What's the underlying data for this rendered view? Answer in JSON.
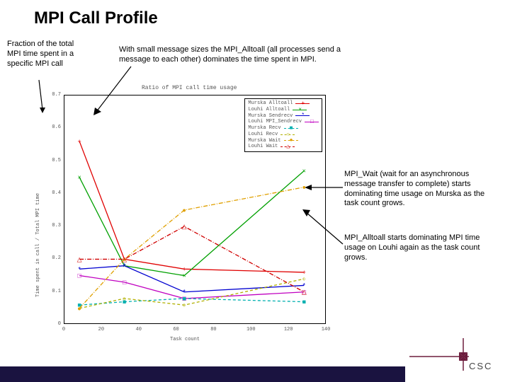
{
  "slide": {
    "title": "MPI Call Profile",
    "annotations": {
      "yaxis": "Fraction of the total MPI time spent in a specific MPI call",
      "top": "With small message sizes the MPI_Alltoall (all processes send a message to each other) dominates the time spent in MPI.",
      "right1": "MPI_Wait (wait for an asynchronous message transfer to complete) starts dominating time usage on Murska as the task count grows.",
      "right2": "MPI_Alltoall starts dominating MPI time usage on Louhi again as the task count grows."
    }
  },
  "chart": {
    "type": "line",
    "title": "Ratio of MPI call time usage",
    "title_fontsize": 8,
    "xlabel": "Task count",
    "ylabel": "Time spent in call / Total MPI time",
    "label_fontsize": 7,
    "xlim": [
      0,
      140
    ],
    "ylim": [
      0,
      0.7
    ],
    "xticks": [
      0,
      20,
      40,
      60,
      80,
      100,
      120,
      140
    ],
    "yticks": [
      0,
      0.1,
      0.2,
      0.3,
      0.4,
      0.5,
      0.6,
      0.7
    ],
    "grid": false,
    "background_color": "#ffffff",
    "border_color": "#000000",
    "series": [
      {
        "id": "murska_alltoall",
        "name": "Murska Alltoall",
        "color": "#e00000",
        "marker": "+",
        "dash": "none",
        "x": [
          8,
          32,
          64,
          128
        ],
        "y": [
          0.56,
          0.2,
          0.17,
          0.16
        ]
      },
      {
        "id": "louhi_alltoall",
        "name": "Louhi Alltoall",
        "color": "#00a000",
        "marker": "x",
        "dash": "none",
        "x": [
          8,
          32,
          64,
          128
        ],
        "y": [
          0.45,
          0.18,
          0.15,
          0.47
        ]
      },
      {
        "id": "murska_sendrecv",
        "name": "Murska Sendrecv",
        "color": "#0000d0",
        "marker": "*",
        "dash": "none",
        "x": [
          8,
          32,
          64,
          128
        ],
        "y": [
          0.17,
          0.18,
          0.1,
          0.12
        ]
      },
      {
        "id": "louhi_sendrecv",
        "name": "Louhi MPI_Sendrecv",
        "color": "#c000c0",
        "marker": "□",
        "dash": "none",
        "x": [
          8,
          32,
          64,
          128
        ],
        "y": [
          0.15,
          0.13,
          0.08,
          0.1
        ]
      },
      {
        "id": "murska_recv",
        "name": "Murska Recv",
        "color": "#00b0b0",
        "marker": "■",
        "dash": "4 3",
        "x": [
          8,
          32,
          64,
          128
        ],
        "y": [
          0.06,
          0.07,
          0.08,
          0.07
        ]
      },
      {
        "id": "louhi_recv",
        "name": "Louhi Recv",
        "color": "#b0b000",
        "marker": "○",
        "dash": "4 3",
        "x": [
          8,
          32,
          64,
          128
        ],
        "y": [
          0.05,
          0.08,
          0.06,
          0.14
        ]
      },
      {
        "id": "murska_wait",
        "name": "Murska Wait",
        "color": "#e0a000",
        "marker": "●",
        "dash": "6 2 1 2",
        "x": [
          8,
          32,
          64,
          128
        ],
        "y": [
          0.05,
          0.2,
          0.35,
          0.42
        ]
      },
      {
        "id": "louhi_wait",
        "name": "Louhi Wait",
        "color": "#d00000",
        "marker": "△",
        "dash": "6 2 1 2",
        "x": [
          8,
          32,
          64,
          128
        ],
        "y": [
          0.2,
          0.2,
          0.3,
          0.1
        ]
      }
    ],
    "legend": {
      "position": "top-right-inside",
      "items": [
        "murska_alltoall",
        "louhi_alltoall",
        "murska_sendrecv",
        "louhi_sendrecv",
        "murska_recv",
        "louhi_recv",
        "murska_wait",
        "louhi_wait"
      ]
    }
  },
  "footer": {
    "bar_color": "#1a1340",
    "logo_text": "CSC",
    "logo_accent_color": "#6d1d3d",
    "logo_letter_color": "#444444"
  }
}
